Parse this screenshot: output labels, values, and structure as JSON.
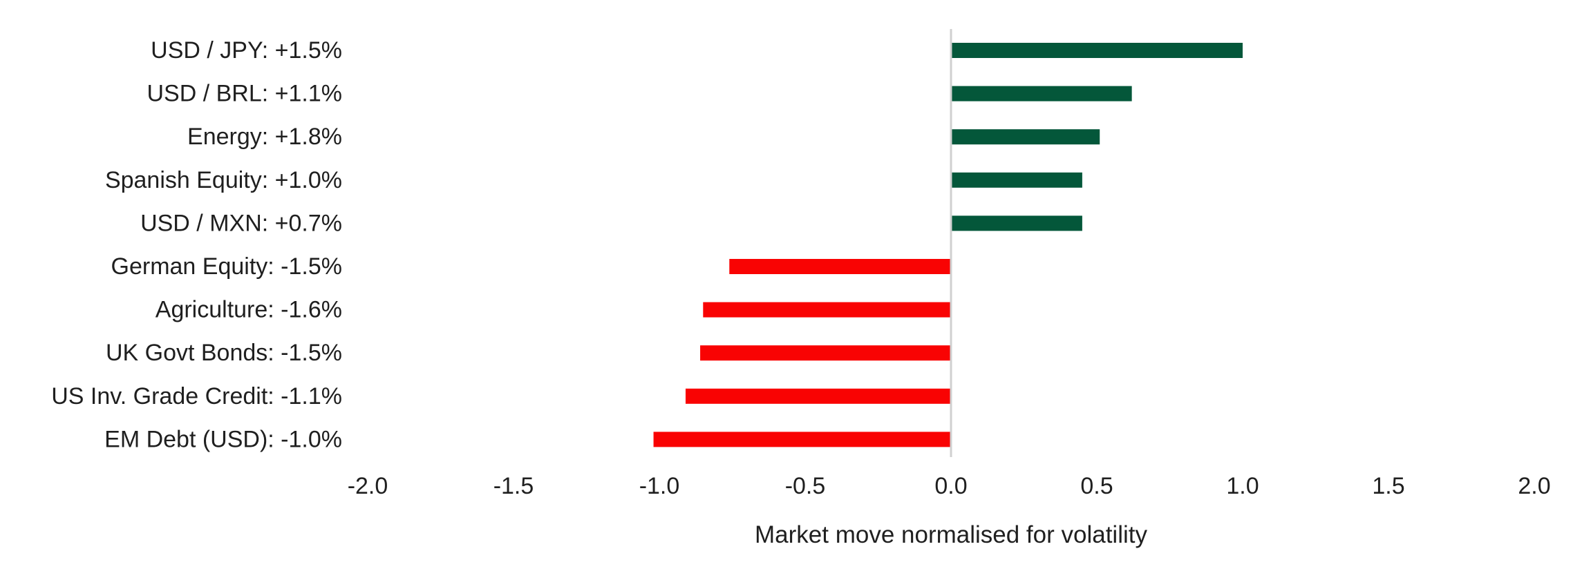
{
  "chart_data": {
    "type": "bar",
    "orientation": "horizontal",
    "title": "",
    "xlabel": "Market move normalised for volatility",
    "ylabel": "",
    "xlim": [
      -2.0,
      2.0
    ],
    "xticks": [
      "-2.0",
      "-1.5",
      "-1.0",
      "-0.5",
      "0.0",
      "0.5",
      "1.0",
      "1.5",
      "2.0"
    ],
    "grid": false,
    "legend": "none",
    "colors": {
      "positive": "#04573a",
      "negative": "#f90303",
      "zero_line": "#d0d0d0"
    },
    "categories": [
      "USD / JPY: +1.5%",
      "USD / BRL: +1.1%",
      "Energy: +1.8%",
      "Spanish Equity: +1.0%",
      "USD / MXN: +0.7%",
      "German Equity: -1.5%",
      "Agriculture: -1.6%",
      "UK Govt Bonds: -1.5%",
      "US Inv. Grade Credit: -1.1%",
      "EM Debt (USD): -1.0%"
    ],
    "values": [
      1.0,
      0.62,
      0.51,
      0.45,
      0.45,
      -0.76,
      -0.85,
      -0.86,
      -0.91,
      -1.02
    ]
  }
}
